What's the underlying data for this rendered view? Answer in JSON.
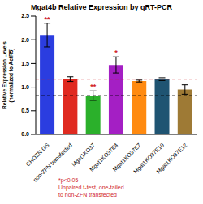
{
  "chart_data": {
    "type": "bar",
    "title": "Mgat4b Relative Expression by qRT-PCR",
    "y_label": [
      "Relative Expression Levels",
      "(normalized to ActR5)"
    ],
    "categories": [
      "CHOZN GS",
      "non-ZFN transfected",
      "Mgat1KO37",
      "Mgat1KO37E4",
      "Mgat1KO37E7",
      "Mgat1KO37E10",
      "Mgat1KO37E12"
    ],
    "values": [
      2.1,
      1.17,
      0.82,
      1.47,
      1.13,
      1.17,
      0.95
    ],
    "errors": [
      0.25,
      0.05,
      0.1,
      0.17,
      0.02,
      0.03,
      0.1
    ],
    "significance": [
      "**",
      null,
      "**",
      "*",
      null,
      null,
      null
    ],
    "colors": [
      "#2b3de0",
      "#e02a20",
      "#2bb02b",
      "#a41fc4",
      "#ff8a10",
      "#1f5472",
      "#9e7a35"
    ],
    "ylim": [
      0,
      2.5
    ],
    "yticks": [
      {
        "value": 0,
        "label": "0.0"
      },
      {
        "value": 0.5,
        "label": "0.5"
      },
      {
        "value": 1,
        "label": "1.0"
      },
      {
        "value": 1.5,
        "label": "1.5"
      },
      {
        "value": 2,
        "label": "2.0"
      },
      {
        "value": 2.5,
        "label": "2.5"
      }
    ],
    "reference_lines": [
      {
        "value": 1.17,
        "color": "#d0262c"
      },
      {
        "value": 0.82,
        "color": "#000000"
      }
    ],
    "annotation": [
      "*p<0.05",
      "Unpaired t-test, one-tailed",
      "to non-ZFN transfected"
    ],
    "annotation_color": "#d0262c",
    "grid": false
  }
}
